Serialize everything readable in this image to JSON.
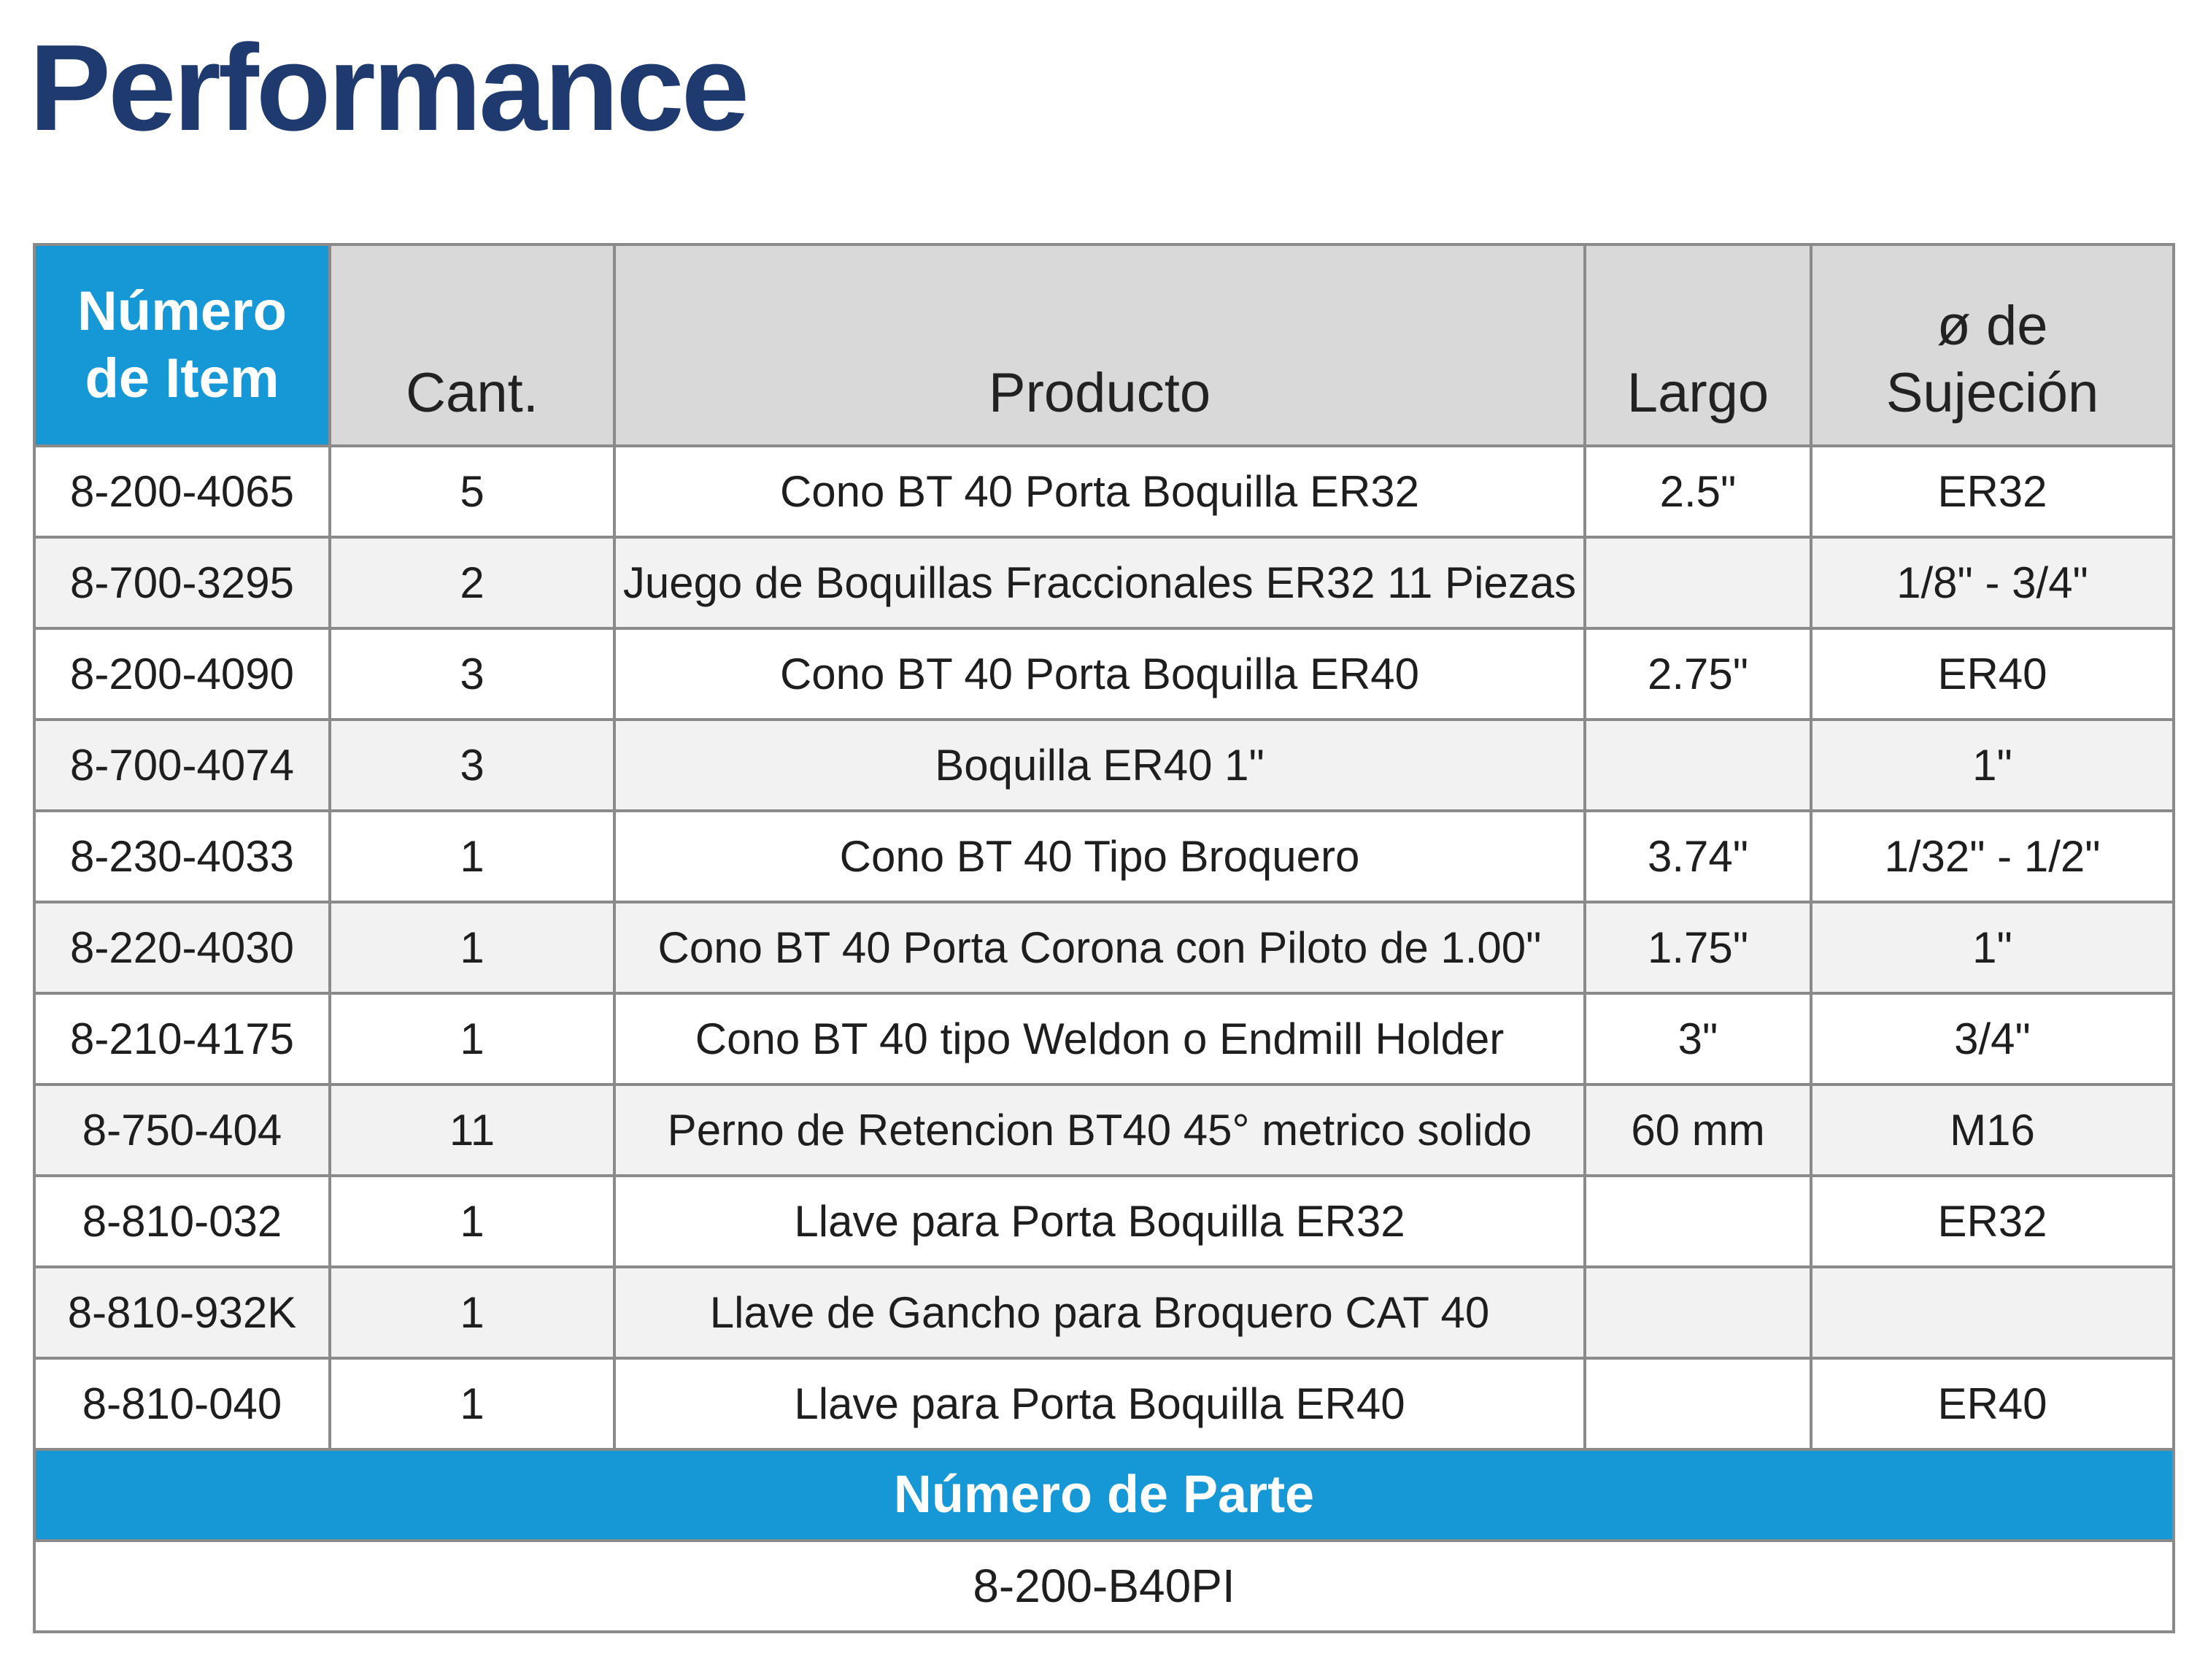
{
  "title": "Performance",
  "colors": {
    "title": "#1f3a6e",
    "accent": "#1697d6",
    "header_bg": "#d9d9d9",
    "border": "#8a8a8a"
  },
  "table": {
    "headers": {
      "item_number": [
        "Número",
        "de Item"
      ],
      "qty": [
        "Cant."
      ],
      "product": [
        "Producto"
      ],
      "length": [
        "Largo"
      ],
      "clamp_diameter": [
        "ø de",
        "Sujeción"
      ]
    },
    "rows": [
      {
        "item": "8-200-4065",
        "qty": "5",
        "product": "Cono BT 40 Porta Boquilla ER32",
        "length": "2.5\"",
        "clamp": "ER32"
      },
      {
        "item": "8-700-3295",
        "qty": "2",
        "product": "Juego de Boquillas Fraccionales ER32 11 Piezas",
        "length": "",
        "clamp": "1/8\" - 3/4\""
      },
      {
        "item": "8-200-4090",
        "qty": "3",
        "product": "Cono BT 40 Porta Boquilla ER40",
        "length": "2.75\"",
        "clamp": "ER40"
      },
      {
        "item": "8-700-4074",
        "qty": "3",
        "product": "Boquilla ER40 1\"",
        "length": "",
        "clamp": "1\""
      },
      {
        "item": "8-230-4033",
        "qty": "1",
        "product": "Cono BT 40 Tipo Broquero",
        "length": "3.74\"",
        "clamp": "1/32\" - 1/2\""
      },
      {
        "item": "8-220-4030",
        "qty": "1",
        "product": "Cono BT 40 Porta Corona con Piloto de 1.00\"",
        "length": "1.75\"",
        "clamp": "1\""
      },
      {
        "item": "8-210-4175",
        "qty": "1",
        "product": "Cono BT 40 tipo Weldon o Endmill Holder",
        "length": "3\"",
        "clamp": "3/4\""
      },
      {
        "item": "8-750-404",
        "qty": "11",
        "product": "Perno de Retencion BT40 45° metrico solido",
        "length": "60 mm",
        "clamp": "M16"
      },
      {
        "item": "8-810-032",
        "qty": "1",
        "product": "Llave para Porta Boquilla ER32",
        "length": "",
        "clamp": "ER32"
      },
      {
        "item": "8-810-932K",
        "qty": "1",
        "product": "Llave de Gancho para Broquero CAT 40",
        "length": "",
        "clamp": ""
      },
      {
        "item": "8-810-040",
        "qty": "1",
        "product": "Llave para Porta Boquilla ER40",
        "length": "",
        "clamp": "ER40"
      }
    ],
    "part_number": {
      "label": "Número de Parte",
      "value": "8-200-B40PI"
    }
  }
}
